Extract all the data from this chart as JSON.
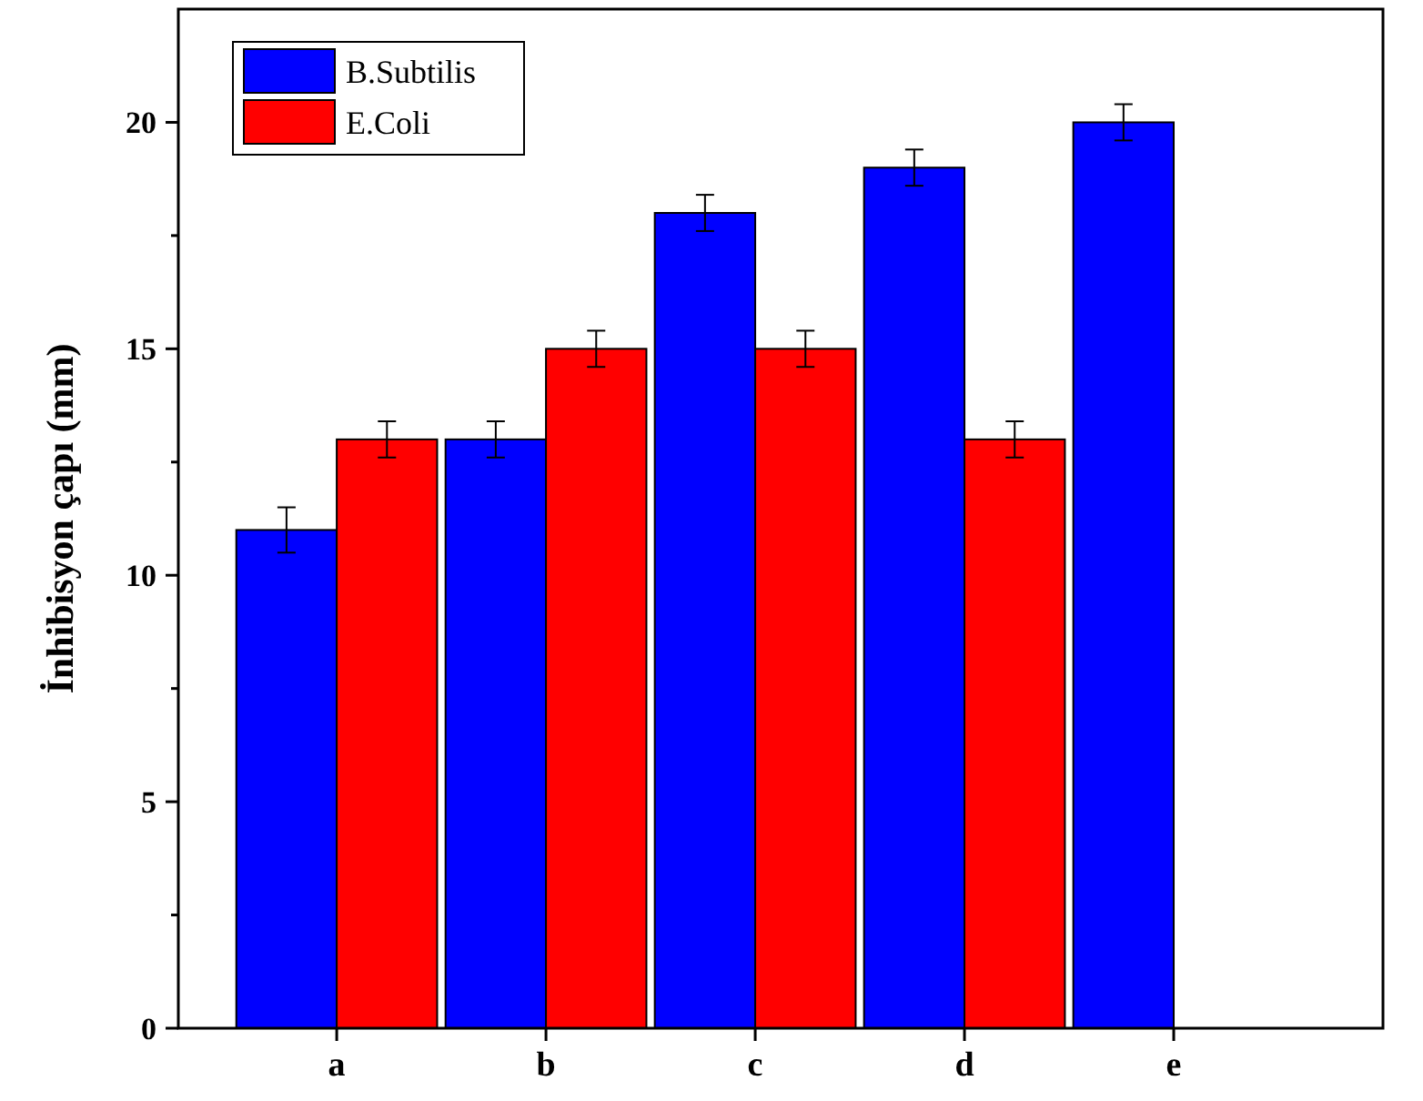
{
  "chart_data": {
    "type": "bar",
    "ylabel": "İnhibisyon çapı (mm)",
    "categories": [
      "a",
      "b",
      "c",
      "d",
      "e"
    ],
    "series": [
      {
        "name": "B.Subtilis",
        "color": "#0000ff",
        "values": [
          11,
          13,
          18,
          19,
          20
        ],
        "errors": [
          0.5,
          0.4,
          0.4,
          0.4,
          0.4
        ]
      },
      {
        "name": "E.Coli",
        "color": "#ff0000",
        "values": [
          13,
          15,
          15,
          13,
          null
        ],
        "errors": [
          0.4,
          0.4,
          0.4,
          0.4,
          null
        ]
      }
    ],
    "ylim": [
      0,
      22.5
    ],
    "yticks": [
      0,
      {
        "value": 2.5,
        "label": null
      },
      5,
      {
        "value": 7.5,
        "label": null
      },
      10,
      {
        "value": 12.5,
        "label": null
      },
      15,
      {
        "value": 17.5,
        "label": null
      },
      20
    ],
    "grid": false,
    "legend": "top left"
  }
}
